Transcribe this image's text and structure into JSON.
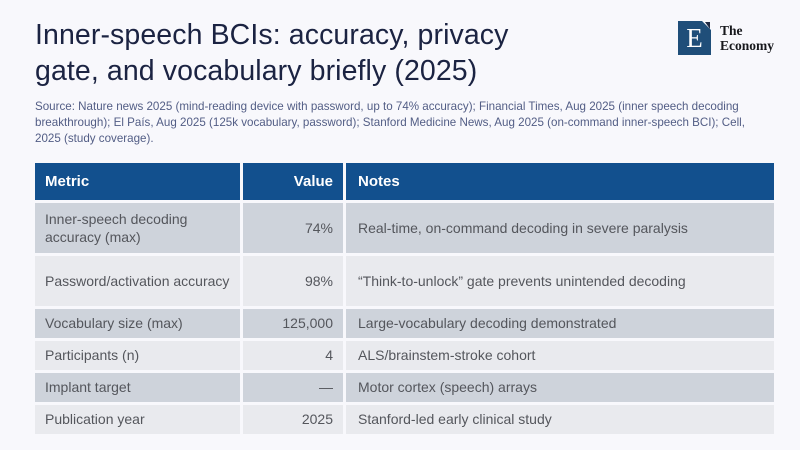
{
  "page": {
    "background": "#f8f8fc"
  },
  "header": {
    "title": "Inner-speech BCIs: accuracy, privacy gate, and vocabulary briefly (2025)",
    "source": "Source: Nature news 2025 (mind-reading device with password, up to 74% accuracy); Financial Times, Aug 2025 (inner speech decoding breakthrough); El País, Aug 2025 (125k vocabulary, password); Stanford Medicine News, Aug 2025 (on-command inner-speech BCI); Cell, 2025 (study coverage)."
  },
  "logo": {
    "letter": "E",
    "name_line1": "The",
    "name_line2": "Economy",
    "square_color": "#1f4e79"
  },
  "colors": {
    "header_blue": "#12508e",
    "row_dark": "#ced3db",
    "row_light": "#e9eaee",
    "title_text": "#1b2342",
    "source_text": "#525d85",
    "cell_text": "#54565c",
    "background": "#f8f8fc"
  },
  "table": {
    "columns": [
      "Metric",
      "Value",
      "Notes"
    ],
    "rows": [
      {
        "metric": "Inner-speech decoding accuracy (max)",
        "value": "74%",
        "notes": "Real-time, on-command decoding in severe paralysis"
      },
      {
        "metric": "Password/activation accuracy",
        "value": "98%",
        "notes": "“Think-to-unlock” gate prevents unintended decoding"
      },
      {
        "metric": "Vocabulary size (max)",
        "value": "125,000",
        "notes": "Large-vocabulary decoding demonstrated"
      },
      {
        "metric": "Participants (n)",
        "value": "4",
        "notes": "ALS/brainstem-stroke cohort"
      },
      {
        "metric": "Implant target",
        "value": "—",
        "notes": "Motor cortex (speech) arrays"
      },
      {
        "metric": "Publication year",
        "value": "2025",
        "notes": "Stanford-led early clinical study"
      }
    ]
  },
  "chart_data": {
    "type": "table",
    "title": "Inner-speech BCIs: accuracy, privacy gate, and vocabulary briefly (2025)",
    "columns": [
      "Metric",
      "Value",
      "Notes"
    ],
    "rows": [
      [
        "Inner-speech decoding accuracy (max)",
        "74%",
        "Real-time, on-command decoding in severe paralysis"
      ],
      [
        "Password/activation accuracy",
        "98%",
        "“Think-to-unlock” gate prevents unintended decoding"
      ],
      [
        "Vocabulary size (max)",
        "125,000",
        "Large-vocabulary decoding demonstrated"
      ],
      [
        "Participants (n)",
        "4",
        "ALS/brainstem-stroke cohort"
      ],
      [
        "Implant target",
        "—",
        "Motor cortex (speech) arrays"
      ],
      [
        "Publication year",
        "2025",
        "Stanford-led early clinical study"
      ]
    ]
  }
}
